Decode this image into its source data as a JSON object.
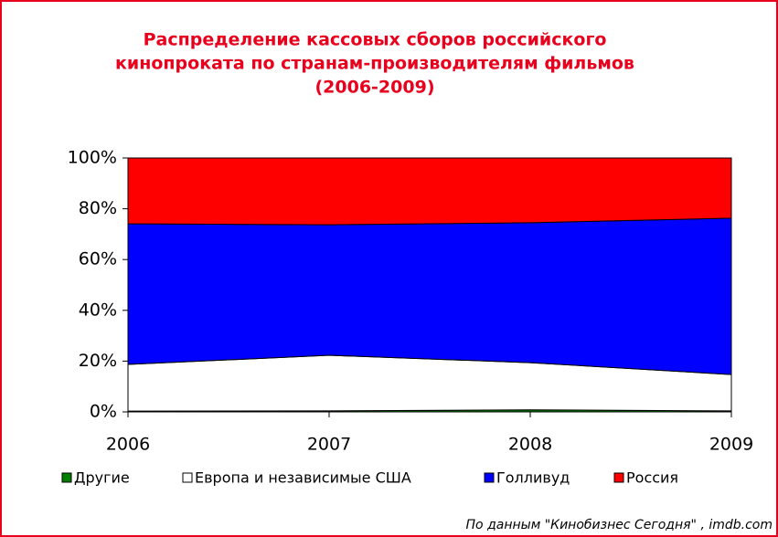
{
  "chart_data": {
    "type": "stacked-area",
    "title": [
      "Распределение кассовых сборов российского",
      "кинопроката по странам-производителям фильмов",
      "(2006-2009)"
    ],
    "categories": [
      "2006",
      "2007",
      "2008",
      "2009"
    ],
    "series": [
      {
        "name": "Другие",
        "color": "#008000",
        "values": [
          0.3,
          0.4,
          0.8,
          0.4
        ]
      },
      {
        "name": "Европа и независимые США",
        "color": "#ffffff",
        "values": [
          18.4,
          21.9,
          18.6,
          14.3
        ]
      },
      {
        "name": "Голливуд",
        "color": "#0000ff",
        "values": [
          55.4,
          51.4,
          55.1,
          61.6
        ]
      },
      {
        "name": "Россия",
        "color": "#ff0000",
        "values": [
          25.9,
          26.3,
          25.5,
          23.7
        ]
      }
    ],
    "ylim": [
      0,
      100
    ],
    "yticks": [
      {
        "value": 0,
        "label": "0%"
      },
      {
        "value": 20,
        "label": "20%"
      },
      {
        "value": 40,
        "label": "40%"
      },
      {
        "value": 60,
        "label": "60%"
      },
      {
        "value": 80,
        "label": "80%"
      },
      {
        "value": 100,
        "label": "100%"
      }
    ],
    "source": "По данным \"Кинобизнес Сегодня\" , imdb.com"
  }
}
